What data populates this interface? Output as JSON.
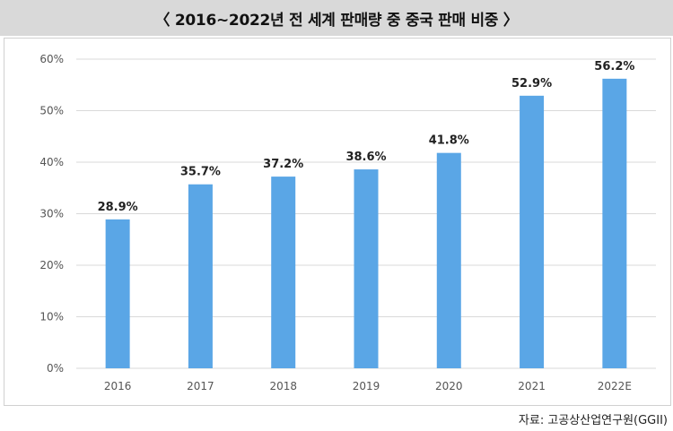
{
  "title": "〈 2016~2022년 전 세계 판매량 중 중국 판매 비중 〉",
  "source": "자료: 고공상산업연구원(GGII)",
  "chart_data": {
    "type": "bar",
    "title": "〈 2016~2022년 전 세계 판매량 중 중국 판매 비중 〉",
    "xlabel": "",
    "ylabel": "",
    "categories": [
      "2016",
      "2017",
      "2018",
      "2019",
      "2020",
      "2021",
      "2022E"
    ],
    "values": [
      28.9,
      35.7,
      37.2,
      38.6,
      41.8,
      52.9,
      56.2
    ],
    "data_labels": [
      "28.9%",
      "35.7%",
      "37.2%",
      "38.6%",
      "41.8%",
      "52.9%",
      "56.2%"
    ],
    "ylim": [
      0,
      60
    ],
    "yticks": [
      0,
      10,
      20,
      30,
      40,
      50,
      60
    ],
    "ytick_labels": [
      "0%",
      "10%",
      "20%",
      "30%",
      "40%",
      "50%",
      "60%"
    ],
    "grid": true,
    "legend": "none",
    "bar_color": "#5aa6e6",
    "grid_color": "#d9d9d9"
  }
}
